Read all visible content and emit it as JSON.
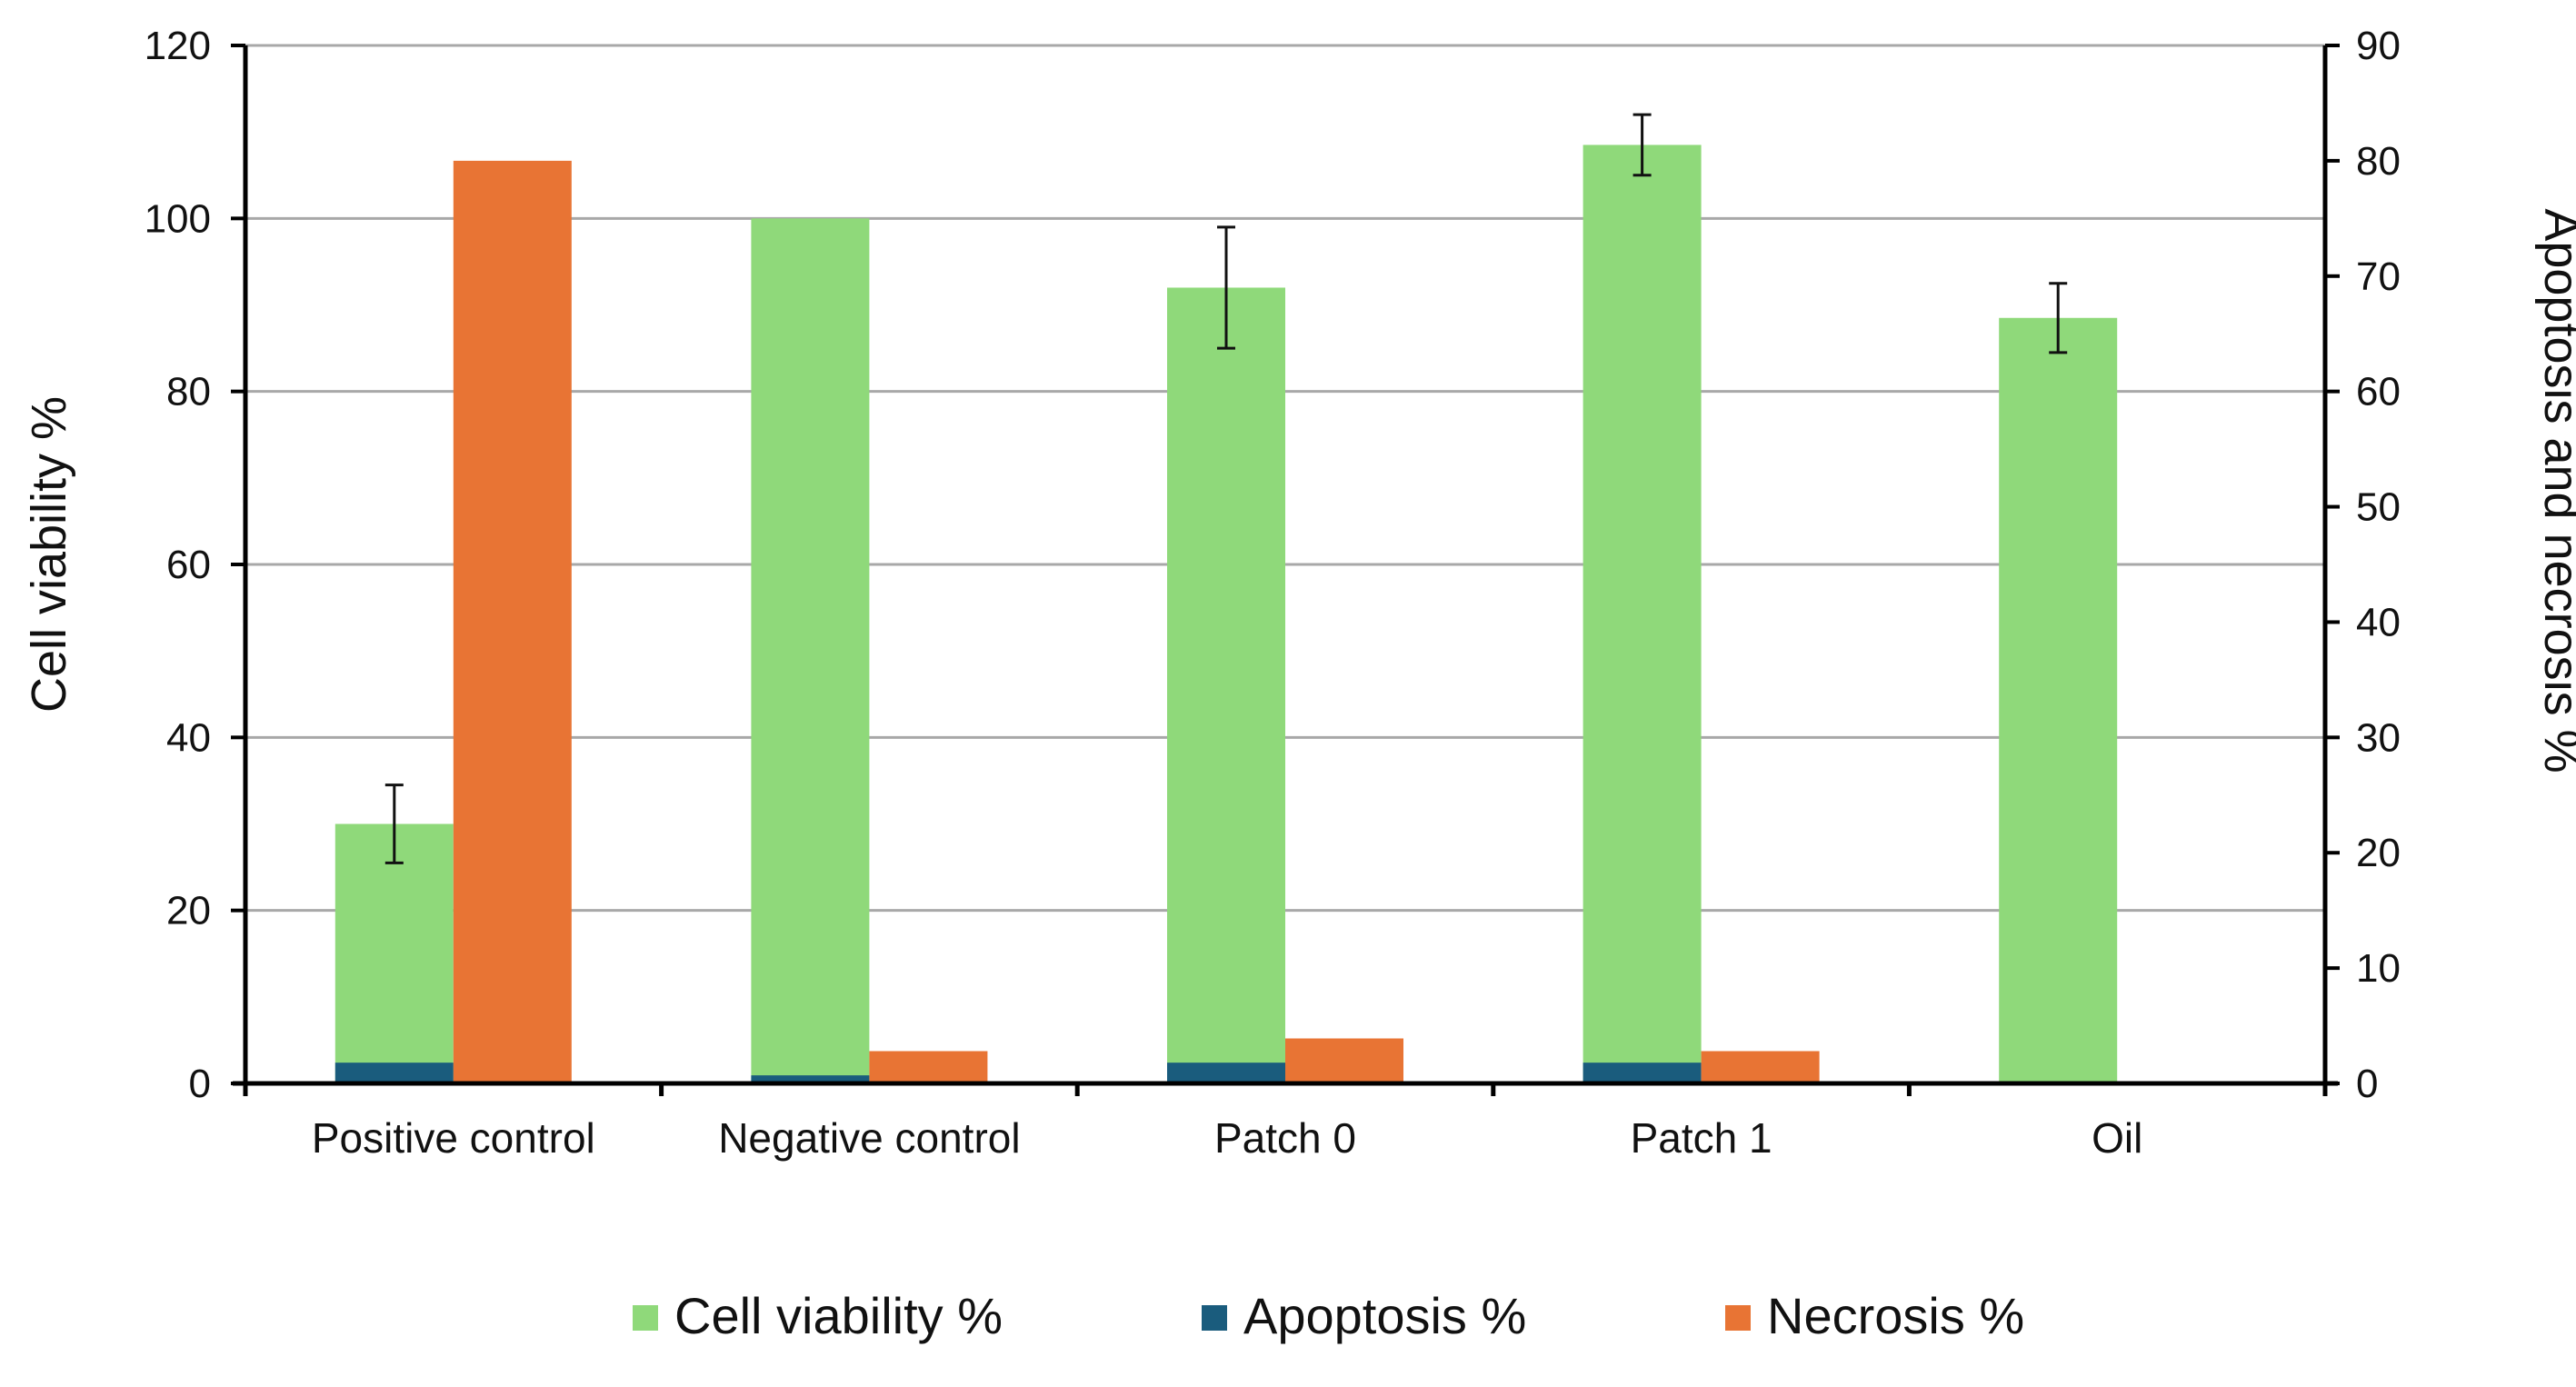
{
  "chart_data": {
    "type": "bar",
    "categories": [
      "Positive control",
      "Negative control",
      "Patch 0",
      "Patch 1",
      "Oil"
    ],
    "y_left": {
      "label": "Cell viability %",
      "ylim": [
        0,
        120
      ],
      "ticks": [
        0,
        20,
        40,
        60,
        80,
        100,
        120
      ]
    },
    "y_right": {
      "label": "Apoptosis and necrosis %",
      "ylim": [
        0,
        90
      ],
      "ticks": [
        0,
        10,
        20,
        30,
        40,
        50,
        60,
        70,
        80,
        90
      ]
    },
    "series": [
      {
        "name": "Cell viability %",
        "axis": "left",
        "color": "#8fd97a",
        "values": [
          30,
          100,
          92,
          108.5,
          88.5
        ],
        "errors": [
          4.5,
          null,
          7,
          3.5,
          4
        ]
      },
      {
        "name": "Apoptosis %",
        "axis": "right",
        "color": "#1a5c7d",
        "values": [
          1.8,
          0.7,
          1.8,
          1.8,
          0
        ],
        "errors": [
          null,
          null,
          null,
          null,
          null
        ]
      },
      {
        "name": "Necrosis %",
        "axis": "right",
        "color": "#e87434",
        "values": [
          80,
          2.8,
          3.9,
          2.8,
          0
        ],
        "errors": [
          null,
          null,
          null,
          null,
          null
        ]
      }
    ],
    "grid": true,
    "legend_position": "bottom"
  }
}
